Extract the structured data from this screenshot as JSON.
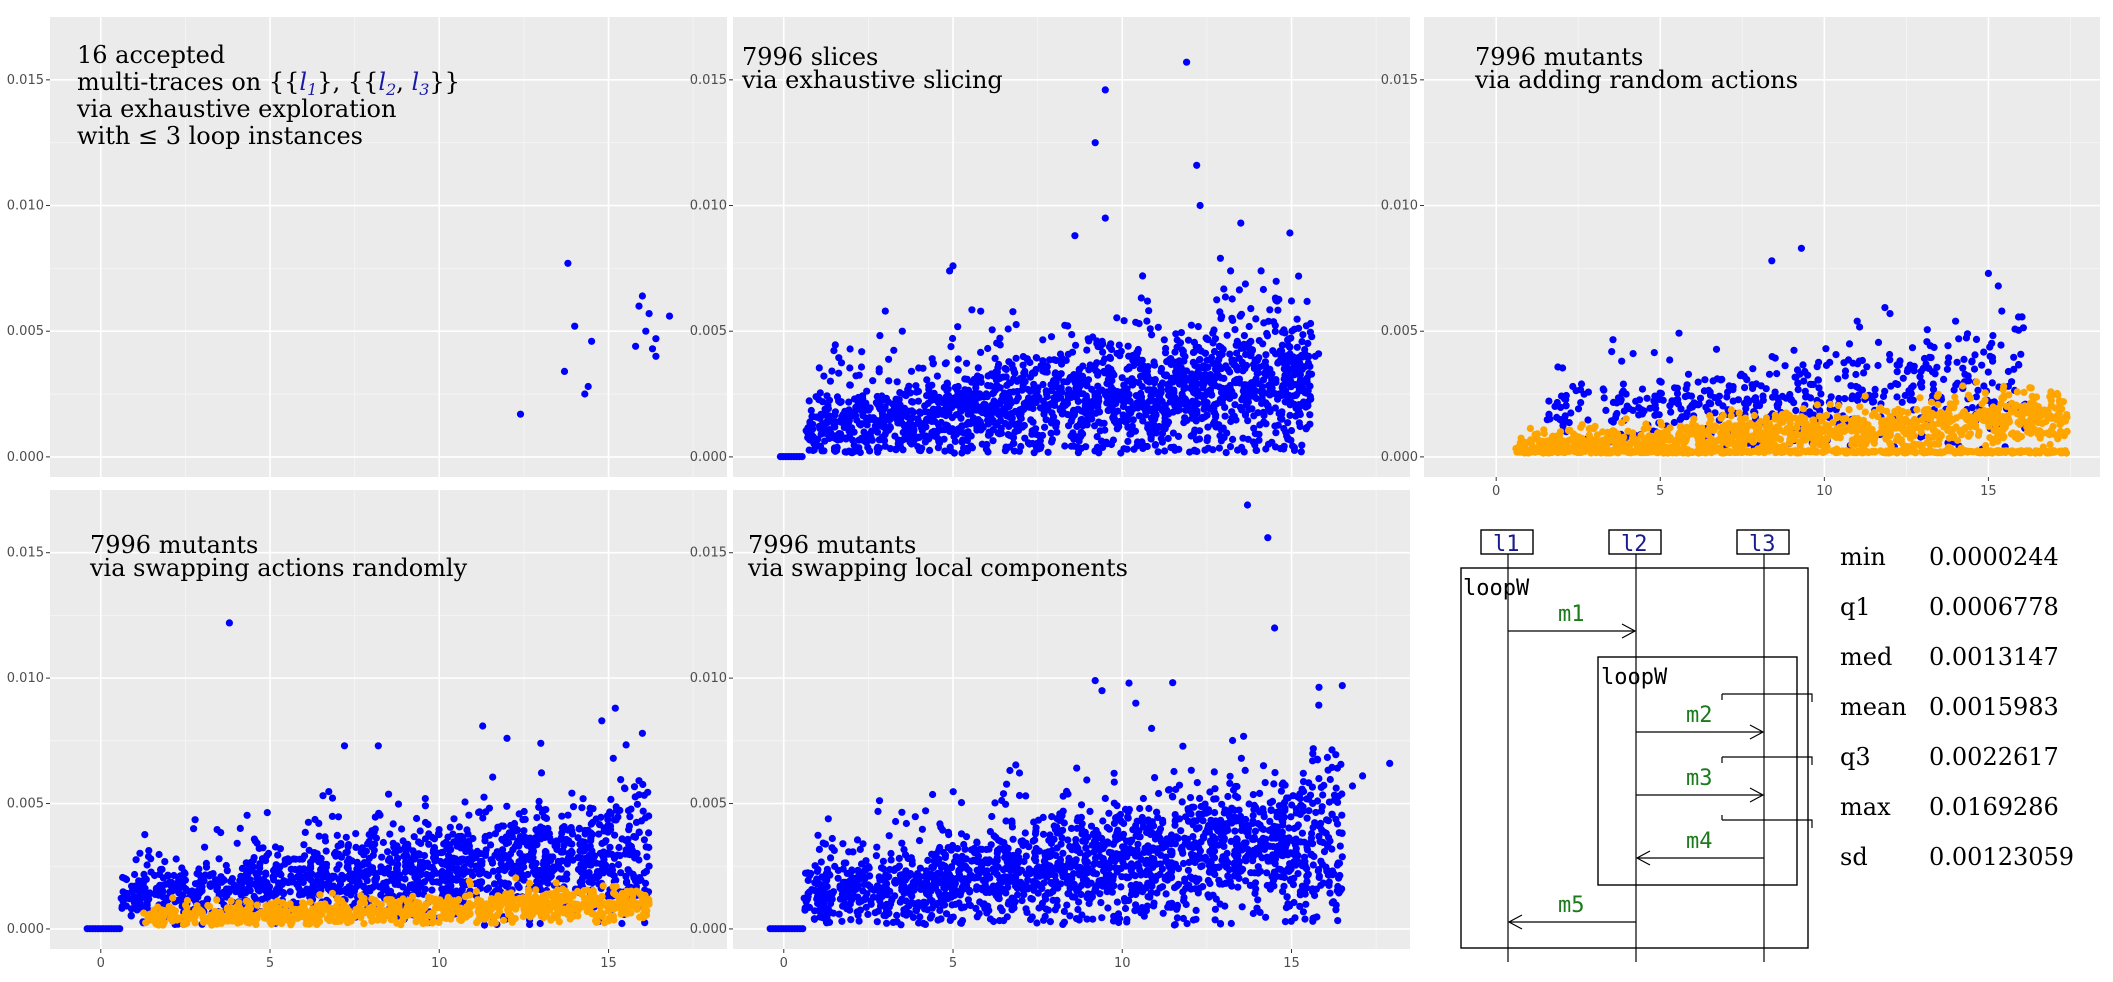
{
  "colors": {
    "blue": "#0000ff",
    "orange": "#ffa500",
    "panel": "#ebebeb"
  },
  "chart_data": [
    {
      "id": "p1",
      "type": "scatter",
      "title_lines": [
        "16 accepted",
        "multi-traces on",
        "via exhaustive exploration",
        "with ≤ 3 loop instances"
      ],
      "xlim": [
        -1.5,
        18.5
      ],
      "ylim": [
        -0.0008,
        0.0175
      ],
      "x_ticks": [],
      "y_ticks": [
        0,
        0.005,
        0.01,
        0.015
      ],
      "y_tick_labels": [
        "0.000",
        "0.005",
        "0.010",
        "0.015"
      ],
      "series": [
        {
          "name": "accepted",
          "color": "#0000ff",
          "points": [
            [
              12.4,
              0.0017
            ],
            [
              13.8,
              0.0077
            ],
            [
              13.7,
              0.0034
            ],
            [
              14.0,
              0.0052
            ],
            [
              14.3,
              0.0025
            ],
            [
              14.4,
              0.0028
            ],
            [
              14.5,
              0.0046
            ],
            [
              15.8,
              0.0044
            ],
            [
              16.0,
              0.0064
            ],
            [
              16.1,
              0.005
            ],
            [
              16.2,
              0.0057
            ],
            [
              16.3,
              0.0043
            ],
            [
              16.4,
              0.004
            ],
            [
              16.4,
              0.0047
            ],
            [
              16.8,
              0.0056
            ],
            [
              15.9,
              0.006
            ]
          ]
        }
      ]
    },
    {
      "id": "p2",
      "type": "scatter",
      "title_lines": [
        "7996 slices",
        "via exhaustive slicing"
      ],
      "xlim": [
        -1.5,
        18.5
      ],
      "ylim": [
        -0.0008,
        0.0175
      ],
      "x_ticks": [],
      "y_ticks": [
        0,
        0.005,
        0.01,
        0.015
      ],
      "series": [
        {
          "name": "slices",
          "color": "#0000ff",
          "outliers": [
            [
              11.9,
              0.0157
            ],
            [
              9.5,
              0.0146
            ],
            [
              9.2,
              0.0125
            ],
            [
              12.2,
              0.0116
            ],
            [
              12.3,
              0.01
            ],
            [
              9.5,
              0.0095
            ],
            [
              13.5,
              0.0093
            ],
            [
              8.6,
              0.0088
            ],
            [
              5.0,
              0.0076
            ],
            [
              4.9,
              0.0074
            ],
            [
              10.6,
              0.0072
            ],
            [
              13.2,
              0.0074
            ],
            [
              12.9,
              0.0079
            ],
            [
              14.1,
              0.0074
            ],
            [
              3.0,
              0.0058
            ],
            [
              3.5,
              0.005
            ],
            [
              15.0,
              0.0062
            ],
            [
              15.7,
              0.004
            ],
            [
              15.8,
              0.0041
            ],
            [
              15.3,
              0.0036
            ]
          ],
          "cloud": {
            "n": 1900,
            "x_range": [
              0.6,
              15.6
            ],
            "y_base": [
              0.001,
              0.003
            ],
            "y_spread": [
              0.0006,
              0.0014
            ],
            "skew_tail": 0.003,
            "zero_run": [
              -0.1,
              0.6
            ]
          }
        }
      ]
    },
    {
      "id": "p3",
      "type": "scatter",
      "title_lines": [
        "7996 mutants",
        "via adding random actions"
      ],
      "xlim": [
        -2.2,
        18.4
      ],
      "ylim": [
        -0.0008,
        0.0175
      ],
      "x_ticks": [
        0,
        5,
        10,
        15
      ],
      "x_tick_labels": [
        "0",
        "5",
        "10",
        "15"
      ],
      "y_ticks": [
        0,
        0.005,
        0.01,
        0.015
      ],
      "series": [
        {
          "name": "blue",
          "color": "#0000ff",
          "outliers": [
            [
              8.4,
              0.0078
            ],
            [
              9.3,
              0.0083
            ],
            [
              15.0,
              0.0073
            ],
            [
              15.3,
              0.0068
            ],
            [
              12.0,
              0.0057
            ],
            [
              11.0,
              0.0054
            ],
            [
              14.0,
              0.0054
            ]
          ],
          "cloud": {
            "n": 520,
            "x_range": [
              1.5,
              16.2
            ],
            "y_base": [
              0.0016,
              0.0028
            ],
            "y_spread": [
              0.0006,
              0.0012
            ],
            "skew_tail": 0.0022
          }
        },
        {
          "name": "orange",
          "color": "#ffa500",
          "cloud": {
            "n": 1400,
            "x_range": [
              0.6,
              17.4
            ],
            "y_base": [
              0.0003,
              0.0016
            ],
            "y_spread": [
              0.0003,
              0.0005
            ],
            "skew_tail": 0.0005,
            "floor_band": 0.00015
          }
        }
      ]
    },
    {
      "id": "p4",
      "type": "scatter",
      "title_lines": [
        "7996 mutants",
        "via swapping actions randomly"
      ],
      "xlim": [
        -1.5,
        18.5
      ],
      "ylim": [
        -0.0008,
        0.0175
      ],
      "x_ticks": [
        0,
        5,
        10,
        15
      ],
      "x_tick_labels": [
        "0",
        "5",
        "10",
        "15"
      ],
      "y_ticks": [
        0,
        0.005,
        0.01,
        0.015
      ],
      "series": [
        {
          "name": "blue",
          "color": "#0000ff",
          "outliers": [
            [
              3.8,
              0.0122
            ],
            [
              15.2,
              0.0088
            ],
            [
              14.8,
              0.0083
            ],
            [
              16.0,
              0.0078
            ],
            [
              12.0,
              0.0076
            ],
            [
              13.0,
              0.0074
            ],
            [
              8.2,
              0.0073
            ],
            [
              7.2,
              0.0073
            ]
          ],
          "cloud": {
            "n": 1500,
            "x_range": [
              0.6,
              16.2
            ],
            "y_base": [
              0.0012,
              0.003
            ],
            "y_spread": [
              0.0005,
              0.0012
            ],
            "skew_tail": 0.0024,
            "zero_run": [
              -0.4,
              0.6
            ]
          }
        },
        {
          "name": "orange",
          "color": "#ffa500",
          "cloud": {
            "n": 900,
            "x_range": [
              1.2,
              16.2
            ],
            "y_base": [
              0.0004,
              0.001
            ],
            "y_spread": [
              0.0002,
              0.0003
            ],
            "skew_tail": 0.0006
          }
        }
      ]
    },
    {
      "id": "p5",
      "type": "scatter",
      "title_lines": [
        "7996 mutants",
        "via swapping local components"
      ],
      "xlim": [
        -1.5,
        18.5
      ],
      "ylim": [
        -0.0008,
        0.0175
      ],
      "x_ticks": [
        0,
        5,
        10,
        15
      ],
      "x_tick_labels": [
        "0",
        "5",
        "10",
        "15"
      ],
      "y_ticks": [
        0,
        0.005,
        0.01,
        0.015
      ],
      "series": [
        {
          "name": "blue",
          "color": "#0000ff",
          "outliers": [
            [
              13.7,
              0.0169
            ],
            [
              14.3,
              0.0156
            ],
            [
              14.5,
              0.012
            ],
            [
              9.2,
              0.0099
            ],
            [
              10.2,
              0.0098
            ],
            [
              16.5,
              0.0097
            ],
            [
              9.4,
              0.0095
            ],
            [
              17.9,
              0.0066
            ],
            [
              17.1,
              0.0061
            ],
            [
              16.8,
              0.0057
            ],
            [
              10.4,
              0.009
            ]
          ],
          "cloud": {
            "n": 1900,
            "x_range": [
              0.6,
              16.5
            ],
            "y_base": [
              0.0012,
              0.0035
            ],
            "y_spread": [
              0.0006,
              0.0015
            ],
            "skew_tail": 0.003,
            "zero_run": [
              -0.4,
              0.6
            ]
          }
        }
      ]
    }
  ],
  "panel1_sets": {
    "l1": "l",
    "l1_sub": "1",
    "l2": "l",
    "l2_sub": "2",
    "l3": "l",
    "l3_sub": "3"
  },
  "sequence_diagram": {
    "lifelines": [
      "l1",
      "l2",
      "l3"
    ],
    "outer_fragment": "loopW",
    "inner_fragment": "loopW",
    "messages": [
      {
        "label": "m1",
        "from": "l1",
        "to": "l2"
      },
      {
        "label": "m2",
        "from": "l2",
        "to": "l3"
      },
      {
        "label": "m3",
        "from": "l2",
        "to": "l3"
      },
      {
        "label": "m4",
        "from": "l3",
        "to": "l2"
      },
      {
        "label": "m5",
        "from": "l2",
        "to": "l1"
      }
    ]
  },
  "stats": [
    {
      "name": "min",
      "value": "0.0000244"
    },
    {
      "name": "q1",
      "value": "0.0006778"
    },
    {
      "name": "med",
      "value": "0.0013147"
    },
    {
      "name": "mean",
      "value": "0.0015983"
    },
    {
      "name": "q3",
      "value": "0.0022617"
    },
    {
      "name": "max",
      "value": "0.0169286"
    },
    {
      "name": "sd",
      "value": "0.00123059"
    }
  ]
}
